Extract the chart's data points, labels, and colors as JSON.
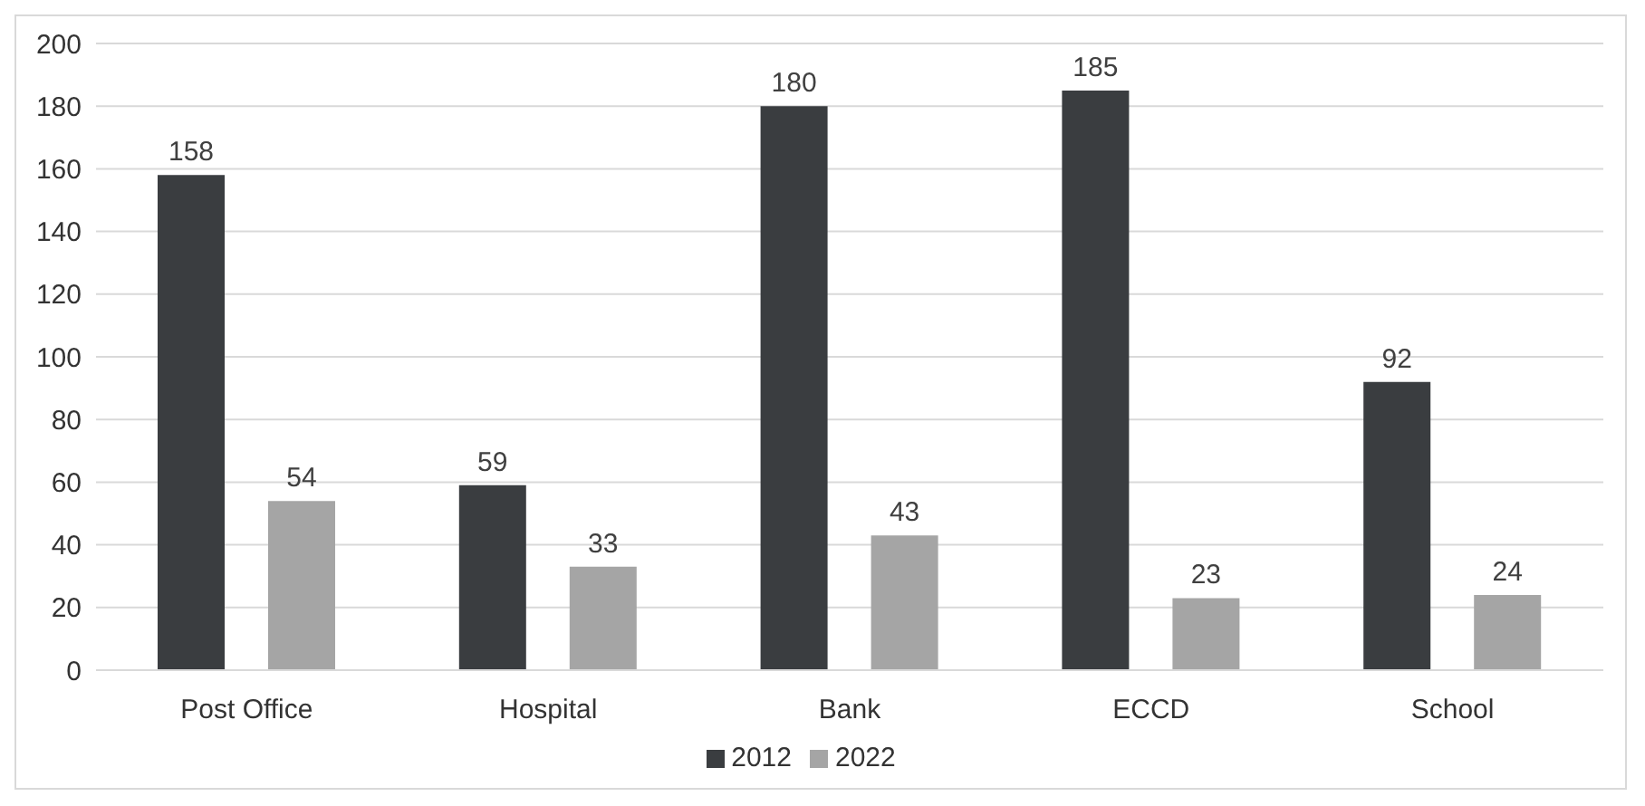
{
  "chart_data": {
    "type": "bar",
    "categories": [
      "Post Office",
      "Hospital",
      "Bank",
      "ECCD",
      "School"
    ],
    "series": [
      {
        "name": "2012",
        "color": "#3a3d40",
        "values": [
          158,
          59,
          180,
          185,
          92
        ]
      },
      {
        "name": "2022",
        "color": "#a5a5a5",
        "values": [
          54,
          33,
          43,
          23,
          24
        ]
      }
    ],
    "ylim": [
      0,
      200
    ],
    "yticks": [
      0,
      20,
      40,
      60,
      80,
      100,
      120,
      140,
      160,
      180,
      200
    ],
    "grid": "y",
    "legend": "bottom",
    "data_labels": true
  }
}
